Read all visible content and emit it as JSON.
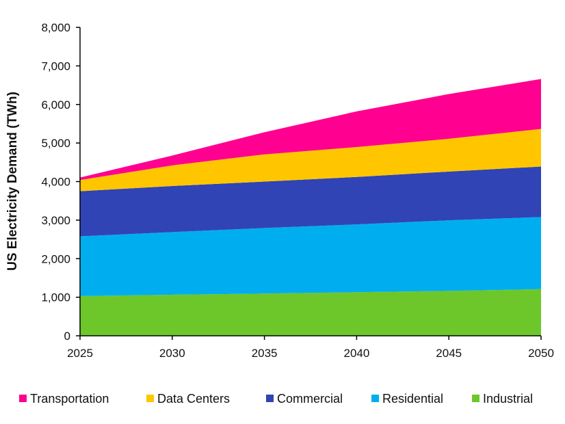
{
  "chart_data": {
    "type": "area",
    "stacked": true,
    "title": "",
    "xlabel": "",
    "ylabel": "US Electricity Demand (TWh)",
    "x": [
      2025,
      2030,
      2035,
      2040,
      2045,
      2050
    ],
    "xticks": [
      "2025",
      "2030",
      "2035",
      "2040",
      "2045",
      "2050"
    ],
    "ylim": [
      0,
      8000
    ],
    "yticks": [
      "0",
      "1,000",
      "2,000",
      "3,000",
      "4,000",
      "5,000",
      "6,000",
      "7,000",
      "8,000"
    ],
    "grid": false,
    "legend_position": "bottom",
    "series": [
      {
        "name": "Industrial",
        "color": "#6DC72A",
        "values": [
          1030,
          1065,
          1095,
          1130,
          1165,
          1210
        ]
      },
      {
        "name": "Residential",
        "color": "#00AEEF",
        "values": [
          1550,
          1625,
          1700,
          1760,
          1830,
          1870
        ]
      },
      {
        "name": "Commercial",
        "color": "#3044B5",
        "values": [
          1170,
          1195,
          1205,
          1230,
          1265,
          1310
        ]
      },
      {
        "name": "Data Centers",
        "color": "#FFC600",
        "values": [
          290,
          535,
          705,
          775,
          850,
          975
        ]
      },
      {
        "name": "Transportation",
        "color": "#FF0090",
        "values": [
          65,
          255,
          575,
          925,
          1160,
          1295
        ]
      }
    ],
    "legend_order": [
      "Transportation",
      "Data Centers",
      "Commercial",
      "Residential",
      "Industrial"
    ]
  }
}
